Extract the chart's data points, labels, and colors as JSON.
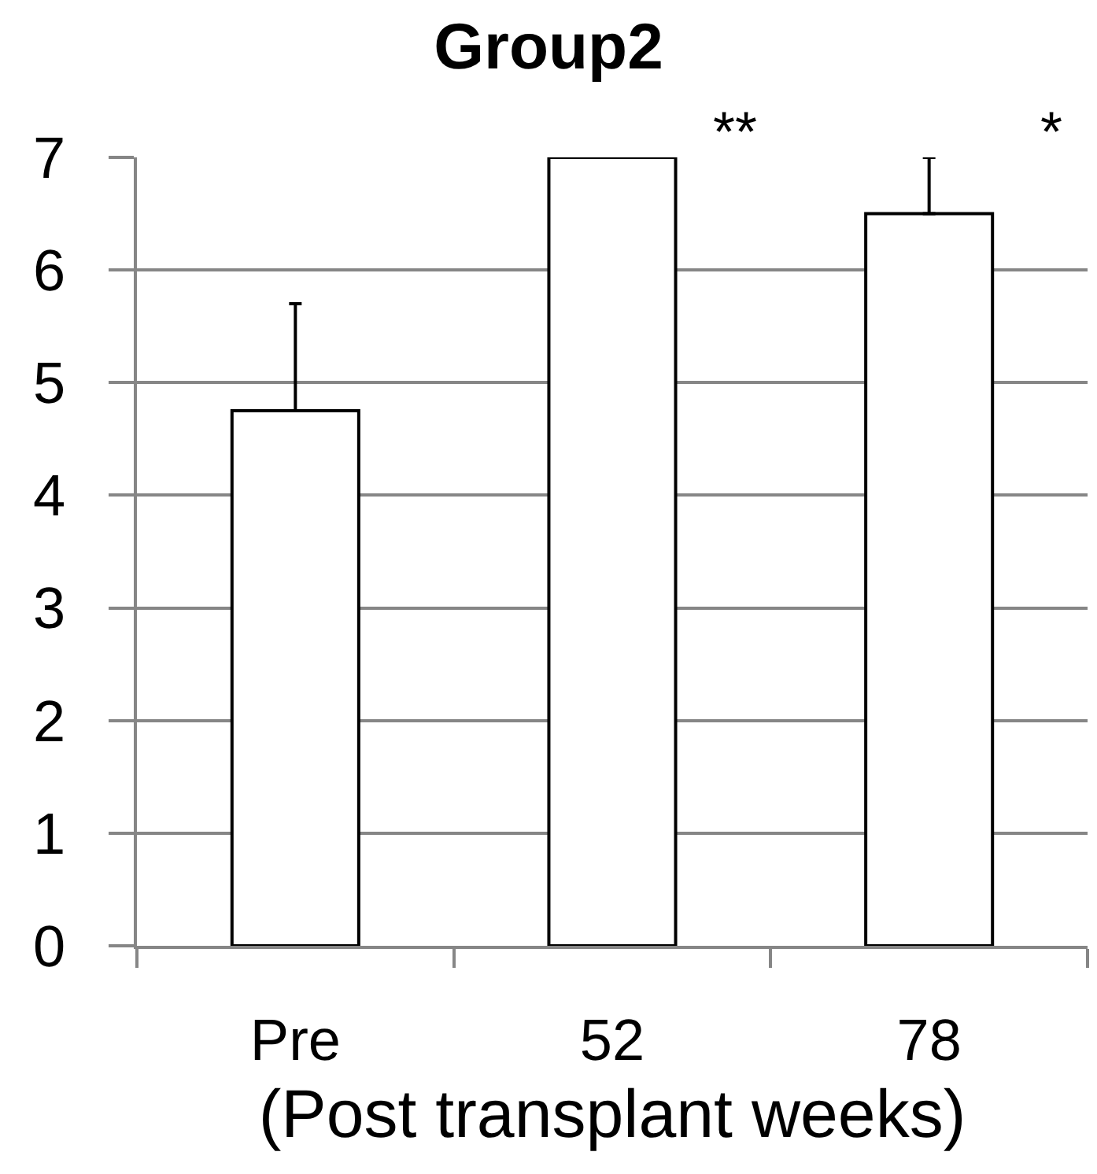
{
  "chart_data": {
    "type": "bar",
    "title": "Group2",
    "xlabel": "(Post transplant weeks)",
    "categories": [
      "Pre",
      "52",
      "78"
    ],
    "values": [
      4.75,
      7,
      6.5
    ],
    "color": "#ffffff",
    "errors": [
      [
        4.75,
        5.7
      ],
      null,
      [
        6.5,
        7
      ]
    ],
    "ylim": [
      0,
      7
    ],
    "yticks": [
      0,
      1,
      2,
      3,
      4,
      5,
      6,
      7
    ],
    "grid": "y",
    "annotations": [
      {
        "text": "**",
        "x": "52",
        "y": 7
      },
      {
        "text": "*",
        "x": "78",
        "y": 7
      }
    ]
  }
}
